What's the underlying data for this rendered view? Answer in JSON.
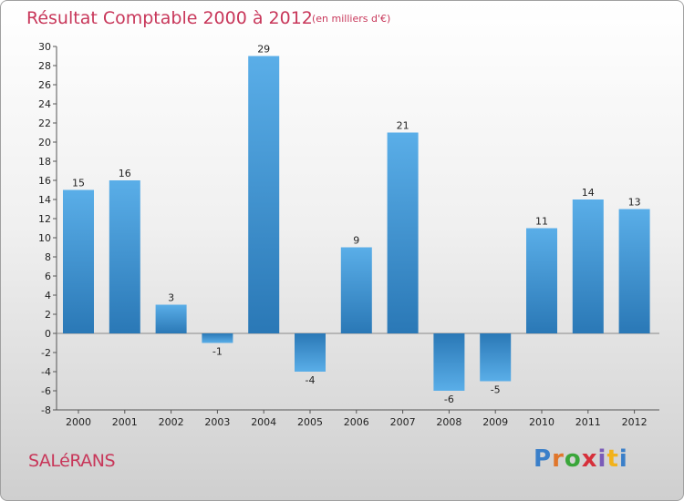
{
  "header": {
    "title": "Résultat Comptable 2000 à 2012",
    "unit": "(en milliers d'€)"
  },
  "commune": "SALéRANS",
  "logo": {
    "letters": [
      "P",
      "r",
      "o",
      "x",
      "i",
      "t",
      "i"
    ]
  },
  "colors": {
    "bar_dark": "#2a78b6",
    "bar_light": "#5aaee8",
    "title": "#c8375a"
  },
  "chart_data": {
    "type": "bar",
    "title": "Résultat Comptable 2000 à 2012",
    "ylabel": "(en milliers d'€)",
    "xlabel": "",
    "categories": [
      "2000",
      "2001",
      "2002",
      "2003",
      "2004",
      "2005",
      "2006",
      "2007",
      "2008",
      "2009",
      "2010",
      "2011",
      "2012"
    ],
    "values": [
      15,
      16,
      3,
      -1,
      29,
      -4,
      9,
      21,
      -6,
      -5,
      11,
      14,
      13
    ],
    "ylim": [
      -8,
      30
    ],
    "yticks": [
      -8,
      -6,
      -4,
      -2,
      0,
      2,
      4,
      6,
      8,
      10,
      12,
      14,
      16,
      18,
      20,
      22,
      24,
      26,
      28,
      30
    ],
    "grid": false
  }
}
